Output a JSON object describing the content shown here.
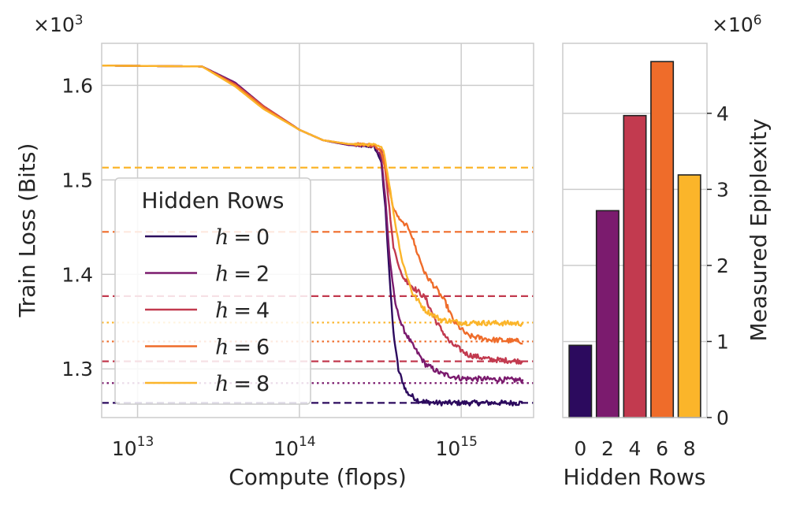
{
  "chart_data": [
    {
      "type": "line",
      "xlabel": "Compute (flops)",
      "ylabel": "Train Loss (Bits)",
      "x_scale": "log",
      "xlim": [
        6000000000000.0,
        2800000000000000.0
      ],
      "ylim": [
        1.2485,
        1.6445
      ],
      "y_multiplier": "×10^3",
      "y_multiplier_base": "×10",
      "y_multiplier_exp": "3",
      "x_ticks": [
        {
          "value": 10000000000000.0,
          "base": "10",
          "exp": "13"
        },
        {
          "value": 100000000000000.0,
          "base": "10",
          "exp": "14"
        },
        {
          "value": 1000000000000000.0,
          "base": "10",
          "exp": "15"
        }
      ],
      "y_ticks": [
        {
          "value": 1.3,
          "label": "1.3"
        },
        {
          "value": 1.4,
          "label": "1.4"
        },
        {
          "value": 1.5,
          "label": "1.5"
        },
        {
          "value": 1.6,
          "label": "1.6"
        }
      ],
      "grid": true,
      "legend": {
        "title": "Hidden Rows",
        "placement": "lower-left",
        "entries": [
          {
            "var": "h",
            "eq": "=",
            "num": "0"
          },
          {
            "var": "h",
            "eq": "=",
            "num": "2"
          },
          {
            "var": "h",
            "eq": "=",
            "num": "4"
          },
          {
            "var": "h",
            "eq": "=",
            "num": "6"
          },
          {
            "var": "h",
            "eq": "=",
            "num": "8"
          }
        ]
      },
      "series": [
        {
          "h": 0,
          "color": "#2c0a5e",
          "plateau": 1.535,
          "drop_x": 310000000000000.0,
          "final": 1.264,
          "noise": 0.0028,
          "points": [
            [
              6000000000000.0,
              1.621
            ],
            [
              25000000000000.0,
              1.62
            ],
            [
              40000000000000.0,
              1.603
            ],
            [
              60000000000000.0,
              1.578
            ],
            [
              100000000000000.0,
              1.553
            ],
            [
              140000000000000.0,
              1.542
            ],
            [
              200000000000000.0,
              1.537
            ],
            [
              290000000000000.0,
              1.535
            ],
            [
              320000000000000.0,
              1.52
            ],
            [
              340000000000000.0,
              1.47
            ],
            [
              360000000000000.0,
              1.4
            ],
            [
              380000000000000.0,
              1.34
            ],
            [
              410000000000000.0,
              1.298
            ],
            [
              460000000000000.0,
              1.275
            ],
            [
              550000000000000.0,
              1.266
            ],
            [
              700000000000000.0,
              1.264
            ],
            [
              2400000000000000.0,
              1.264
            ]
          ]
        },
        {
          "h": 2,
          "color": "#7b1b6e",
          "plateau": 1.536,
          "drop_x": 330000000000000.0,
          "final": 1.288,
          "noise": 0.0028,
          "points": [
            [
              6000000000000.0,
              1.621
            ],
            [
              25000000000000.0,
              1.62
            ],
            [
              40000000000000.0,
              1.603
            ],
            [
              60000000000000.0,
              1.578
            ],
            [
              100000000000000.0,
              1.553
            ],
            [
              140000000000000.0,
              1.542
            ],
            [
              200000000000000.0,
              1.537
            ],
            [
              290000000000000.0,
              1.536
            ],
            [
              320000000000000.0,
              1.525
            ],
            [
              340000000000000.0,
              1.48
            ],
            [
              360000000000000.0,
              1.42
            ],
            [
              390000000000000.0,
              1.37
            ],
            [
              430000000000000.0,
              1.345
            ],
            [
              500000000000000.0,
              1.325
            ],
            [
              600000000000000.0,
              1.305
            ],
            [
              750000000000000.0,
              1.295
            ],
            [
              1000000000000000.0,
              1.29
            ],
            [
              2400000000000000.0,
              1.288
            ]
          ]
        },
        {
          "h": 4,
          "color": "#c23a4f",
          "plateau": 1.536,
          "drop_x": 340000000000000.0,
          "final": 1.308,
          "noise": 0.0028,
          "points": [
            [
              6000000000000.0,
              1.621
            ],
            [
              25000000000000.0,
              1.62
            ],
            [
              40000000000000.0,
              1.601
            ],
            [
              60000000000000.0,
              1.578
            ],
            [
              100000000000000.0,
              1.553
            ],
            [
              140000000000000.0,
              1.542
            ],
            [
              200000000000000.0,
              1.538
            ],
            [
              290000000000000.0,
              1.536
            ],
            [
              330000000000000.0,
              1.53
            ],
            [
              350000000000000.0,
              1.49
            ],
            [
              380000000000000.0,
              1.43
            ],
            [
              430000000000000.0,
              1.398
            ],
            [
              500000000000000.0,
              1.387
            ],
            [
              600000000000000.0,
              1.375
            ],
            [
              700000000000000.0,
              1.35
            ],
            [
              850000000000000.0,
              1.328
            ],
            [
              1100000000000000.0,
              1.315
            ],
            [
              1500000000000000.0,
              1.31
            ],
            [
              2400000000000000.0,
              1.308
            ]
          ]
        },
        {
          "h": 6,
          "color": "#ef6c2a",
          "plateau": 1.537,
          "drop_x": 350000000000000.0,
          "final": 1.329,
          "noise": 0.0028,
          "points": [
            [
              6000000000000.0,
              1.621
            ],
            [
              25000000000000.0,
              1.62
            ],
            [
              40000000000000.0,
              1.601
            ],
            [
              60000000000000.0,
              1.577
            ],
            [
              100000000000000.0,
              1.553
            ],
            [
              140000000000000.0,
              1.542
            ],
            [
              200000000000000.0,
              1.538
            ],
            [
              290000000000000.0,
              1.537
            ],
            [
              320000000000000.0,
              1.53
            ],
            [
              350000000000000.0,
              1.5
            ],
            [
              380000000000000.0,
              1.47
            ],
            [
              420000000000000.0,
              1.457
            ],
            [
              480000000000000.0,
              1.448
            ],
            [
              530000000000000.0,
              1.425
            ],
            [
              600000000000000.0,
              1.4
            ],
            [
              700000000000000.0,
              1.385
            ],
            [
              800000000000000.0,
              1.37
            ],
            [
              900000000000000.0,
              1.35
            ],
            [
              1100000000000000.0,
              1.335
            ],
            [
              1500000000000000.0,
              1.331
            ],
            [
              2400000000000000.0,
              1.329
            ]
          ]
        },
        {
          "h": 8,
          "color": "#fbb52a",
          "plateau": 1.537,
          "drop_x": 360000000000000.0,
          "final": 1.348,
          "noise": 0.0028,
          "points": [
            [
              6000000000000.0,
              1.621
            ],
            [
              25000000000000.0,
              1.62
            ],
            [
              40000000000000.0,
              1.599
            ],
            [
              60000000000000.0,
              1.575
            ],
            [
              100000000000000.0,
              1.553
            ],
            [
              140000000000000.0,
              1.542
            ],
            [
              200000000000000.0,
              1.538
            ],
            [
              290000000000000.0,
              1.537
            ],
            [
              330000000000000.0,
              1.533
            ],
            [
              360000000000000.0,
              1.495
            ],
            [
              390000000000000.0,
              1.455
            ],
            [
              430000000000000.0,
              1.415
            ],
            [
              500000000000000.0,
              1.38
            ],
            [
              600000000000000.0,
              1.362
            ],
            [
              750000000000000.0,
              1.352
            ],
            [
              1000000000000000.0,
              1.349
            ],
            [
              2400000000000000.0,
              1.348
            ]
          ]
        }
      ],
      "hlines": [
        {
          "y": 1.264,
          "color": "#2c0a5e",
          "style": "dashed"
        },
        {
          "y": 1.285,
          "color": "#7b1b6e",
          "style": "dotted"
        },
        {
          "y": 1.308,
          "color": "#c23a4f",
          "style": "dashed"
        },
        {
          "y": 1.329,
          "color": "#ef6c2a",
          "style": "dotted"
        },
        {
          "y": 1.349,
          "color": "#fbb52a",
          "style": "dotted"
        },
        {
          "y": 1.377,
          "color": "#c23a4f",
          "style": "dashed"
        },
        {
          "y": 1.445,
          "color": "#ef6c2a",
          "style": "dashed"
        },
        {
          "y": 1.513,
          "color": "#fbb52a",
          "style": "dashed"
        }
      ]
    },
    {
      "type": "bar",
      "categories": [
        "0",
        "2",
        "4",
        "6",
        "8"
      ],
      "values": [
        0.95,
        2.72,
        3.97,
        4.68,
        3.19
      ],
      "colors": [
        "#2c0a5e",
        "#7b1b6e",
        "#c23a4f",
        "#ef6c2a",
        "#fbb52a"
      ],
      "xlabel": "Hidden Rows",
      "ylabel": "Measured Epiplexity",
      "ylim": [
        0,
        4.92
      ],
      "y_axis_side": "right",
      "y_multiplier": "×10^6",
      "y_multiplier_base": "×10",
      "y_multiplier_exp": "6",
      "y_ticks": [
        {
          "value": 0,
          "label": "0"
        },
        {
          "value": 1,
          "label": "1"
        },
        {
          "value": 2,
          "label": "2"
        },
        {
          "value": 3,
          "label": "3"
        },
        {
          "value": 4,
          "label": "4"
        }
      ],
      "grid": true
    }
  ]
}
